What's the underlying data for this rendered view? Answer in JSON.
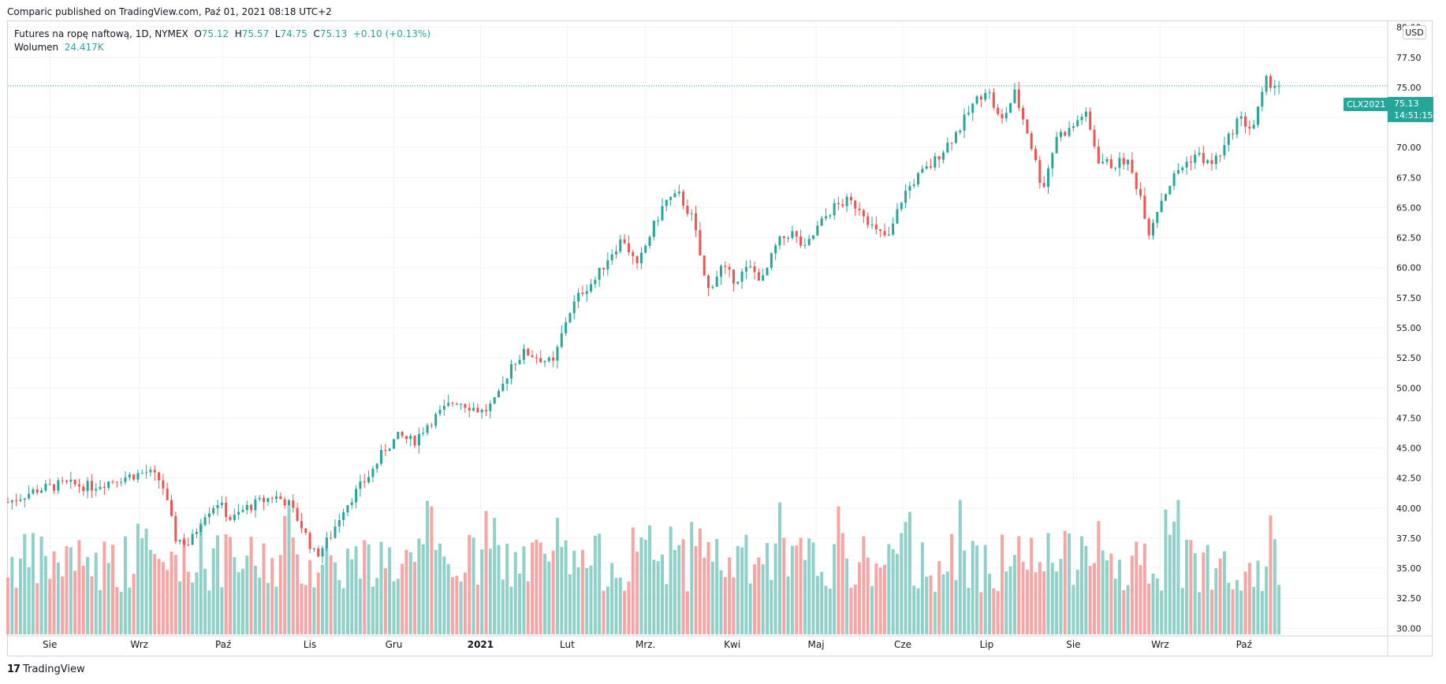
{
  "header": {
    "published": "Comparic published on TradingView.com, Paź 01, 2021 08:18 UTC+2"
  },
  "legend": {
    "title": "Futures na ropę naftową, 1D, NYMEX",
    "o_label": "O",
    "o": "75.12",
    "h_label": "H",
    "h": "75.57",
    "l_label": "L",
    "l": "74.75",
    "c_label": "C",
    "c": "75.13",
    "change": "+0.10 (+0.13%)",
    "volume_label": "Wolumen",
    "volume": "24.417K"
  },
  "price_axis": {
    "currency": "USD"
  },
  "last_price": {
    "symbol": "CLX2021",
    "price": "75.13",
    "countdown": "14:51:15"
  },
  "footer": {
    "brand": "TradingView",
    "brand_mark": "17"
  },
  "colors": {
    "up": "#26a69a",
    "down": "#ef5350",
    "up_volume": "#8fd0c8",
    "down_volume": "#f5a5a3",
    "grid": "#f0f3fa"
  },
  "chart_data": {
    "type": "candlestick",
    "symbol": "CLX2021",
    "ylim": [
      29.5,
      80.5
    ],
    "y_ticks": [
      "30.00",
      "32.50",
      "35.00",
      "37.50",
      "40.00",
      "42.50",
      "45.00",
      "47.50",
      "50.00",
      "52.50",
      "55.00",
      "57.50",
      "60.00",
      "62.50",
      "65.00",
      "67.50",
      "70.00",
      "72.50",
      "75.00",
      "77.50",
      "80.00"
    ],
    "x_ticks": [
      {
        "label": "Sie",
        "day": 15
      },
      {
        "label": "Wrz",
        "day": 47
      },
      {
        "label": "Paź",
        "day": 77
      },
      {
        "label": "Lis",
        "day": 108
      },
      {
        "label": "Gru",
        "day": 138
      },
      {
        "label": "2021",
        "day": 169,
        "bold": true
      },
      {
        "label": "Lut",
        "day": 200
      },
      {
        "label": "Mrz.",
        "day": 228
      },
      {
        "label": "Kwi",
        "day": 259
      },
      {
        "label": "Maj",
        "day": 289
      },
      {
        "label": "Cze",
        "day": 320
      },
      {
        "label": "Lip",
        "day": 350
      },
      {
        "label": "Sie",
        "day": 381
      },
      {
        "label": "Wrz",
        "day": 412
      },
      {
        "label": "Paź",
        "day": 442
      }
    ],
    "day_range": [
      0,
      468
    ],
    "price_path": [
      [
        0,
        40.5
      ],
      [
        10,
        41.5
      ],
      [
        20,
        42.0
      ],
      [
        30,
        41.8
      ],
      [
        40,
        42.5
      ],
      [
        50,
        43.0
      ],
      [
        55,
        42.2
      ],
      [
        60,
        37.5
      ],
      [
        65,
        37.0
      ],
      [
        70,
        39.5
      ],
      [
        75,
        40.5
      ],
      [
        80,
        39.0
      ],
      [
        85,
        40.0
      ],
      [
        90,
        40.5
      ],
      [
        95,
        41.0
      ],
      [
        100,
        40.5
      ],
      [
        105,
        38.5
      ],
      [
        110,
        36.0
      ],
      [
        115,
        37.5
      ],
      [
        120,
        40.0
      ],
      [
        125,
        41.5
      ],
      [
        130,
        43.0
      ],
      [
        135,
        45.0
      ],
      [
        140,
        46.0
      ],
      [
        145,
        45.5
      ],
      [
        150,
        47.0
      ],
      [
        155,
        48.0
      ],
      [
        160,
        49.0
      ],
      [
        165,
        48.5
      ],
      [
        170,
        48.0
      ],
      [
        175,
        49.0
      ],
      [
        180,
        52.0
      ],
      [
        185,
        53.0
      ],
      [
        190,
        52.5
      ],
      [
        195,
        52.0
      ],
      [
        200,
        56.0
      ],
      [
        205,
        58.0
      ],
      [
        210,
        59.0
      ],
      [
        215,
        61.0
      ],
      [
        220,
        62.5
      ],
      [
        225,
        60.0
      ],
      [
        230,
        63.0
      ],
      [
        235,
        65.5
      ],
      [
        240,
        66.0
      ],
      [
        245,
        64.0
      ],
      [
        250,
        58.0
      ],
      [
        255,
        60.0
      ],
      [
        260,
        59.0
      ],
      [
        265,
        60.0
      ],
      [
        270,
        59.0
      ],
      [
        275,
        62.0
      ],
      [
        280,
        63.0
      ],
      [
        285,
        61.5
      ],
      [
        290,
        63.5
      ],
      [
        295,
        65.0
      ],
      [
        300,
        65.5
      ],
      [
        305,
        65.0
      ],
      [
        310,
        63.0
      ],
      [
        315,
        62.5
      ],
      [
        320,
        66.0
      ],
      [
        325,
        67.5
      ],
      [
        330,
        68.5
      ],
      [
        335,
        70.0
      ],
      [
        340,
        71.5
      ],
      [
        345,
        73.5
      ],
      [
        350,
        75.0
      ],
      [
        355,
        72.0
      ],
      [
        360,
        74.5
      ],
      [
        365,
        71.0
      ],
      [
        370,
        66.5
      ],
      [
        375,
        71.0
      ],
      [
        380,
        71.5
      ],
      [
        385,
        73.0
      ],
      [
        390,
        69.0
      ],
      [
        395,
        68.5
      ],
      [
        400,
        69.0
      ],
      [
        405,
        66.0
      ],
      [
        408,
        63.0
      ],
      [
        412,
        65.5
      ],
      [
        418,
        68.0
      ],
      [
        425,
        69.5
      ],
      [
        430,
        68.5
      ],
      [
        435,
        70.0
      ],
      [
        440,
        72.5
      ],
      [
        445,
        71.5
      ],
      [
        450,
        75.5
      ],
      [
        455,
        75.13
      ]
    ],
    "volume_range": [
      30,
      43
    ],
    "last_close": 75.13
  }
}
